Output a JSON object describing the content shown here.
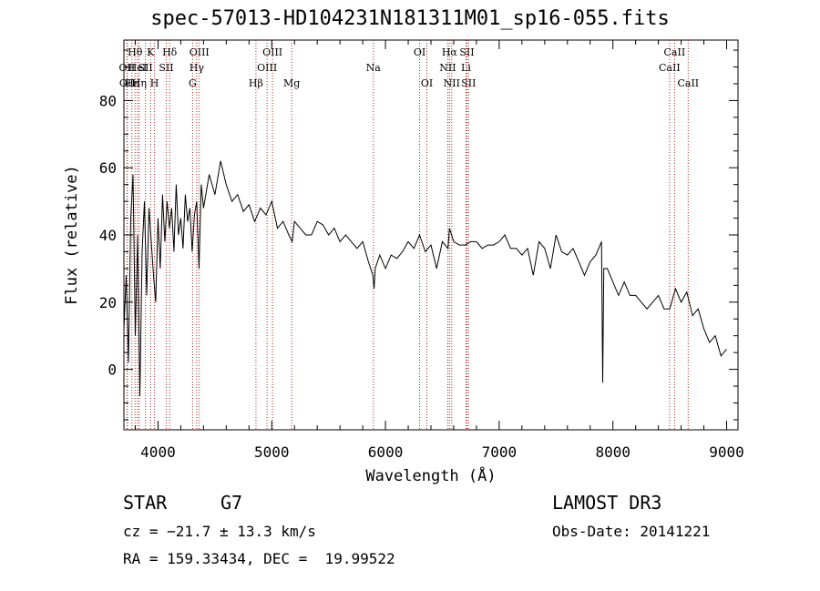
{
  "chart_data": {
    "type": "line",
    "title": "spec-57013-HD104231N181311M01_sp16-055.fits",
    "xlabel": "Wavelength (Å)",
    "ylabel": "Flux (relative)",
    "xlim": [
      3700,
      9100
    ],
    "ylim": [
      -18,
      98
    ],
    "xticks": [
      4000,
      5000,
      6000,
      7000,
      8000,
      9000
    ],
    "yticks": [
      0,
      20,
      40,
      60,
      80
    ],
    "series": [
      {
        "name": "flux",
        "x": [
          3700,
          3720,
          3740,
          3760,
          3780,
          3800,
          3820,
          3840,
          3860,
          3880,
          3900,
          3920,
          3940,
          3960,
          3980,
          4000,
          4020,
          4040,
          4060,
          4080,
          4100,
          4120,
          4140,
          4160,
          4180,
          4200,
          4220,
          4240,
          4260,
          4280,
          4300,
          4320,
          4340,
          4360,
          4380,
          4400,
          4450,
          4500,
          4550,
          4600,
          4650,
          4700,
          4750,
          4800,
          4850,
          4900,
          4950,
          5000,
          5050,
          5100,
          5150,
          5180,
          5200,
          5250,
          5300,
          5350,
          5400,
          5450,
          5500,
          5550,
          5600,
          5650,
          5700,
          5750,
          5800,
          5850,
          5890,
          5900,
          5910,
          5950,
          6000,
          6050,
          6100,
          6150,
          6200,
          6250,
          6300,
          6350,
          6400,
          6450,
          6500,
          6550,
          6563,
          6600,
          6650,
          6700,
          6750,
          6800,
          6850,
          6900,
          6950,
          7000,
          7050,
          7100,
          7150,
          7200,
          7250,
          7300,
          7350,
          7400,
          7450,
          7500,
          7550,
          7600,
          7650,
          7700,
          7750,
          7800,
          7850,
          7900,
          7910,
          7920,
          7950,
          8000,
          8050,
          8100,
          8150,
          8200,
          8250,
          8300,
          8350,
          8400,
          8450,
          8500,
          8550,
          8600,
          8650,
          8700,
          8750,
          8800,
          8850,
          8900,
          8950,
          9000
        ],
        "values": [
          12,
          28,
          2,
          45,
          58,
          10,
          40,
          -8,
          35,
          50,
          22,
          48,
          38,
          28,
          20,
          45,
          30,
          52,
          38,
          50,
          42,
          48,
          35,
          55,
          40,
          45,
          36,
          52,
          44,
          48,
          35,
          46,
          50,
          30,
          55,
          48,
          58,
          52,
          62,
          55,
          50,
          52,
          47,
          49,
          44,
          48,
          46,
          50,
          42,
          44,
          40,
          38,
          44,
          42,
          40,
          40,
          44,
          43,
          40,
          42,
          38,
          40,
          38,
          36,
          38,
          32,
          28,
          24,
          30,
          34,
          30,
          34,
          33,
          35,
          38,
          36,
          40,
          35,
          37,
          30,
          38,
          36,
          42,
          38,
          37,
          37,
          38,
          38,
          36,
          37,
          37,
          38,
          40,
          36,
          36,
          34,
          36,
          28,
          38,
          36,
          30,
          40,
          35,
          34,
          36,
          32,
          28,
          32,
          34,
          38,
          -4,
          30,
          30,
          26,
          22,
          26,
          22,
          22,
          20,
          18,
          20,
          22,
          18,
          18,
          24,
          20,
          23,
          16,
          18,
          12,
          8,
          10,
          4,
          6
        ]
      }
    ],
    "lines": [
      {
        "label": "Hθ",
        "wave": 3798,
        "row": 1
      },
      {
        "label": "OII",
        "wave": 3727,
        "row": 2
      },
      {
        "label": "OII",
        "wave": 3730,
        "row": 3
      },
      {
        "label": "Hε",
        "wave": 3770,
        "row": 3
      },
      {
        "label": "HeI",
        "wave": 3820,
        "row": 2
      },
      {
        "label": "Hη",
        "wave": 3835,
        "row": 3
      },
      {
        "label": "K",
        "wave": 3934,
        "row": 1
      },
      {
        "label": "SII",
        "wave": 3889,
        "row": 2
      },
      {
        "label": "H",
        "wave": 3969,
        "row": 3
      },
      {
        "label": "Hδ",
        "wave": 4102,
        "row": 1
      },
      {
        "label": "SII",
        "wave": 4072,
        "row": 2
      },
      {
        "label": "OIII",
        "wave": 4363,
        "row": 1
      },
      {
        "label": "Hγ",
        "wave": 4340,
        "row": 2
      },
      {
        "label": "G",
        "wave": 4304,
        "row": 3
      },
      {
        "label": "OIII",
        "wave": 5007,
        "row": 1
      },
      {
        "label": "OIII",
        "wave": 4959,
        "row": 2
      },
      {
        "label": "Hβ",
        "wave": 4861,
        "row": 3
      },
      {
        "label": "Mg",
        "wave": 5175,
        "row": 3
      },
      {
        "label": "Na",
        "wave": 5893,
        "row": 2
      },
      {
        "label": "OI",
        "wave": 6300,
        "row": 1
      },
      {
        "label": "OI",
        "wave": 6364,
        "row": 3
      },
      {
        "label": "Hα",
        "wave": 6563,
        "row": 1
      },
      {
        "label": "NII",
        "wave": 6548,
        "row": 2
      },
      {
        "label": "NII",
        "wave": 6583,
        "row": 3
      },
      {
        "label": "SII",
        "wave": 6716,
        "row": 1
      },
      {
        "label": "Li",
        "wave": 6708,
        "row": 2
      },
      {
        "label": "SII",
        "wave": 6731,
        "row": 3
      },
      {
        "label": "CaII",
        "wave": 8542,
        "row": 1
      },
      {
        "label": "CaII",
        "wave": 8498,
        "row": 2
      },
      {
        "label": "CaII",
        "wave": 8662,
        "row": 3
      }
    ]
  },
  "info": {
    "class": "STAR",
    "subclass": "G7",
    "survey": "LAMOST DR3",
    "cz": "cz = −21.7 ± 13.3 km/s",
    "obs_date": "Obs-Date: 20141221",
    "radec": "RA = 159.33434, DEC =  19.99522"
  },
  "colors": {
    "line": "#000000",
    "marker": "#b22222"
  }
}
